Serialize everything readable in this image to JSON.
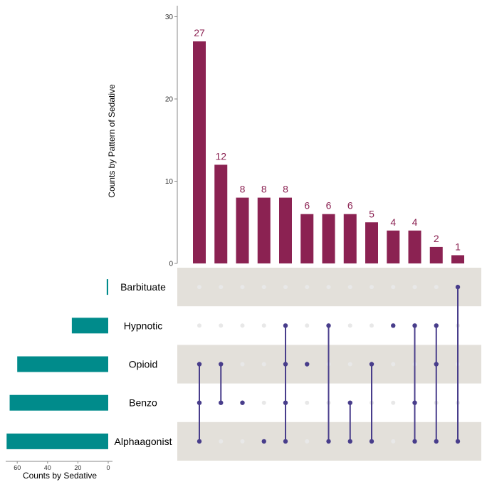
{
  "chart_data": {
    "type": "bar",
    "ylabel": "Counts by Pattern of Sedative",
    "ylim": [
      0,
      31
    ],
    "yticks": [
      0,
      10,
      20,
      30
    ],
    "values": [
      27,
      12,
      8,
      8,
      8,
      6,
      6,
      6,
      5,
      4,
      4,
      2,
      1
    ],
    "sets": [
      "Barbituate",
      "Hypnotic",
      "Opioid",
      "Benzo",
      "Alphaagonist"
    ],
    "set_sizes": [
      1,
      24,
      60,
      65,
      67
    ],
    "set_size_label": "Counts by Sedative",
    "set_size_ticks": [
      60,
      40,
      20,
      0
    ],
    "set_size_xlim": [
      0,
      70
    ],
    "intersections": [
      [
        "Opioid",
        "Benzo",
        "Alphaagonist"
      ],
      [
        "Opioid",
        "Benzo"
      ],
      [
        "Benzo"
      ],
      [
        "Alphaagonist"
      ],
      [
        "Hypnotic",
        "Opioid",
        "Benzo",
        "Alphaagonist"
      ],
      [
        "Opioid"
      ],
      [
        "Hypnotic",
        "Alphaagonist"
      ],
      [
        "Benzo",
        "Alphaagonist"
      ],
      [
        "Opioid",
        "Alphaagonist"
      ],
      [
        "Hypnotic"
      ],
      [
        "Hypnotic",
        "Benzo",
        "Alphaagonist"
      ],
      [
        "Hypnotic",
        "Opioid",
        "Alphaagonist"
      ],
      [
        "Barbituate",
        "Alphaagonist"
      ]
    ],
    "colors": {
      "bar": "#8B2252",
      "set_bar": "#008B8B",
      "dot": "#483D8B",
      "empty_dot": "#E8E8E8",
      "stripe": "#E3E0DA"
    }
  }
}
